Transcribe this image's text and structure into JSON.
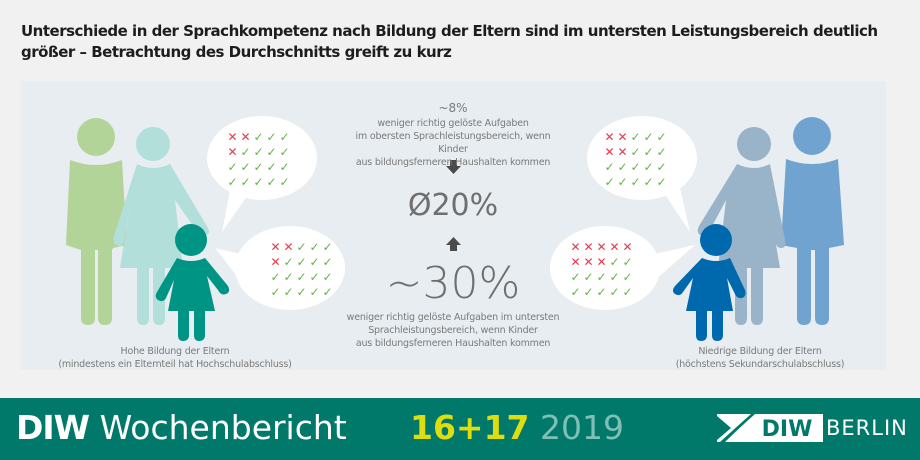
{
  "title": {
    "line1": "Unterschiede in der Sprachkompetenz nach Bildung der Eltern sind im untersten Leistungsbereich deutlich",
    "line2": "größer – Betrachtung des Durchschnitts greift zu kurz"
  },
  "center": {
    "top_value": "~8%",
    "top_desc": [
      "weniger richtig gelöste Aufgaben",
      "im obersten Sprachleistungsbereich, wenn Kinder",
      "aus bildungsferneren Haushalten kommen"
    ],
    "average_value": "Ø20%",
    "bottom_value": "~30%",
    "bottom_desc": [
      "weniger richtig gelöste Aufgaben im untersten",
      "Sprachleistungsbereich, wenn Kinder",
      "aus bildungsferneren Haushalten kommen"
    ]
  },
  "left_group": {
    "label1": "Hohe Bildung der Eltern",
    "label2": "(mindestens ein Elternteil hat Hochschulabschluss)",
    "colors": {
      "father": "#b3d498",
      "mother": "#b2dfd9",
      "child": "#009485"
    },
    "bubble_top": [
      [
        "x",
        "x",
        "c",
        "c",
        "c"
      ],
      [
        "x",
        "c",
        "c",
        "c",
        "c"
      ],
      [
        "c",
        "c",
        "c",
        "c",
        "c"
      ],
      [
        "c",
        "c",
        "c",
        "c",
        "c"
      ]
    ],
    "bubble_bottom": [
      [
        "x",
        "x",
        "c",
        "c",
        "c"
      ],
      [
        "x",
        "c",
        "c",
        "c",
        "c"
      ],
      [
        "c",
        "c",
        "c",
        "c",
        "c"
      ],
      [
        "c",
        "c",
        "c",
        "c",
        "c"
      ]
    ]
  },
  "right_group": {
    "label1": "Niedrige Bildung der Eltern",
    "label2": "(höchstens Sekundarschulabschluss)",
    "colors": {
      "father": "#71a3d0",
      "mother": "#99b4c9",
      "child": "#0068ad"
    },
    "bubble_top": [
      [
        "x",
        "x",
        "c",
        "c",
        "c"
      ],
      [
        "x",
        "x",
        "c",
        "c",
        "c"
      ],
      [
        "c",
        "c",
        "c",
        "c",
        "c"
      ],
      [
        "c",
        "c",
        "c",
        "c",
        "c"
      ]
    ],
    "bubble_bottom": [
      [
        "x",
        "x",
        "x",
        "x",
        "x"
      ],
      [
        "x",
        "x",
        "x",
        "c",
        "c"
      ],
      [
        "c",
        "c",
        "c",
        "c",
        "c"
      ],
      [
        "c",
        "c",
        "c",
        "c",
        "c"
      ]
    ]
  },
  "marks": {
    "x": "✕",
    "c": "✓",
    "x_color": "#e53a4c",
    "c_color": "#66b34a"
  },
  "footer": {
    "brand_bold": "DIW",
    "brand_rest": "Wochenbericht",
    "issue": "16+17",
    "year": "2019",
    "logo_box": "DIW",
    "logo_text": "BERLIN"
  }
}
